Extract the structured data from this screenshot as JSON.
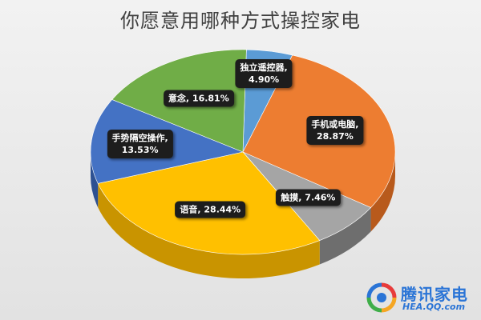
{
  "chart_data": {
    "type": "pie",
    "title": "你愿意用哪种方式操控家电",
    "slices": [
      {
        "name": "独立遥控器",
        "value": 4.9,
        "label_line1": "独立遥控器,",
        "label_line2": "4.90%",
        "color": "#5b9bd5",
        "side_color": "#3d78ad"
      },
      {
        "name": "手机或电脑",
        "value": 28.87,
        "label_line1": "手机或电脑,",
        "label_line2": "28.87%",
        "color": "#ed7d31",
        "side_color": "#b85a1c"
      },
      {
        "name": "触摸",
        "value": 7.46,
        "label_line1": "触摸, 7.46%",
        "label_line2": "",
        "color": "#a5a5a5",
        "side_color": "#6e6e6e"
      },
      {
        "name": "语音",
        "value": 28.44,
        "label_line1": "语音, 28.44%",
        "label_line2": "",
        "color": "#ffc000",
        "side_color": "#c99400"
      },
      {
        "name": "手势隔空操作",
        "value": 13.53,
        "label_line1": "手势隔空操作,",
        "label_line2": "13.53%",
        "color": "#4472c4",
        "side_color": "#2e5192"
      },
      {
        "name": "意念",
        "value": 16.81,
        "label_line1": "意念, 16.81%",
        "label_line2": "",
        "color": "#70ad47",
        "side_color": "#4d7d2f"
      }
    ]
  },
  "watermark": {
    "name": "腾讯家电",
    "site": "HEA.QQ.com",
    "colors": [
      "#e83b3b",
      "#f5a623",
      "#3fae49",
      "#2a74d6"
    ]
  }
}
